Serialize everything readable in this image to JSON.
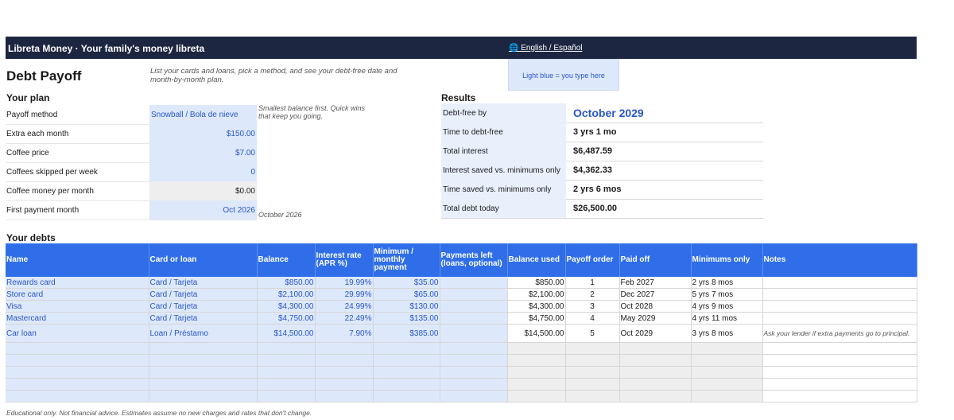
{
  "header": {
    "brand": "Libreta Money   ·   Your family's money libreta",
    "lang_link": "🌐 English / Español"
  },
  "legend_hint": "Light blue = you type here",
  "page": {
    "title": "Debt Payoff",
    "intro": "List your cards and loans, pick a method, and see your debt-free date and month-by-month plan."
  },
  "plan": {
    "heading": "Your plan",
    "rows": [
      {
        "label": "Payoff method",
        "value": "Snowball / Bola de nieve"
      },
      {
        "label": "Extra each month",
        "value": "$150.00"
      },
      {
        "label": "Coffee price",
        "value": "$7.00"
      },
      {
        "label": "Coffees skipped per week",
        "value": "0"
      },
      {
        "label": "Coffee money per month",
        "value": "$0.00"
      },
      {
        "label": "First payment month",
        "value": "Oct 2026"
      }
    ],
    "method_note": "Smallest balance first. Quick wins that keep you going.",
    "month_note": "October 2026"
  },
  "results": {
    "heading": "Results",
    "rows": [
      {
        "label": "Debt-free by",
        "value": "October 2029"
      },
      {
        "label": "Time to debt-free",
        "value": "3 yrs 1 mo"
      },
      {
        "label": "Total interest",
        "value": "$6,487.59"
      },
      {
        "label": "Interest saved vs. minimums only",
        "value": "$4,362.33"
      },
      {
        "label": "Time saved vs. minimums only",
        "value": "2 yrs 6 mos"
      },
      {
        "label": "Total debt today",
        "value": "$26,500.00"
      }
    ]
  },
  "debts": {
    "heading": "Your debts",
    "columns": [
      "Name",
      "Card or loan",
      "Balance",
      "Interest rate (APR %)",
      "Minimum / monthly payment",
      "Payments left (loans, optional)",
      "Balance used",
      "Payoff order",
      "Paid off",
      "Minimums only",
      "Notes"
    ],
    "rows": [
      {
        "name": "Rewards card",
        "type": "Card / Tarjeta",
        "balance": "$850.00",
        "apr": "19.99%",
        "minimum": "$35.00",
        "payments_left": "",
        "balance_used": "$850.00",
        "order": "1",
        "paid_off": "Feb 2027",
        "min_only": "2 yrs 8 mos",
        "notes": ""
      },
      {
        "name": "Store card",
        "type": "Card / Tarjeta",
        "balance": "$2,100.00",
        "apr": "29.99%",
        "minimum": "$65.00",
        "payments_left": "",
        "balance_used": "$2,100.00",
        "order": "2",
        "paid_off": "Dec 2027",
        "min_only": "5 yrs 7 mos",
        "notes": ""
      },
      {
        "name": "Visa",
        "type": "Card / Tarjeta",
        "balance": "$4,300.00",
        "apr": "24.99%",
        "minimum": "$130.00",
        "payments_left": "",
        "balance_used": "$4,300.00",
        "order": "3",
        "paid_off": "Oct 2028",
        "min_only": "4 yrs 9 mos",
        "notes": ""
      },
      {
        "name": "Mastercard",
        "type": "Card / Tarjeta",
        "balance": "$4,750.00",
        "apr": "22.49%",
        "minimum": "$135.00",
        "payments_left": "",
        "balance_used": "$4,750.00",
        "order": "4",
        "paid_off": "May 2029",
        "min_only": "4 yrs 11 mos",
        "notes": ""
      },
      {
        "name": "Car loan",
        "type": "Loan / Préstamo",
        "balance": "$14,500.00",
        "apr": "7.90%",
        "minimum": "$385.00",
        "payments_left": "",
        "balance_used": "$14,500.00",
        "order": "5",
        "paid_off": "Oct 2029",
        "min_only": "3 yrs 8 mos",
        "notes": "Ask your lender if extra payments go to principal."
      }
    ]
  },
  "footer": "Educational only. Not financial advice. Estimates assume no new charges and rates that don't change.",
  "colors": {
    "header_bg": "#1d2640",
    "table_header": "#2f6ee8",
    "input_fill": "#dde8fb",
    "accent_text": "#2757c9"
  }
}
